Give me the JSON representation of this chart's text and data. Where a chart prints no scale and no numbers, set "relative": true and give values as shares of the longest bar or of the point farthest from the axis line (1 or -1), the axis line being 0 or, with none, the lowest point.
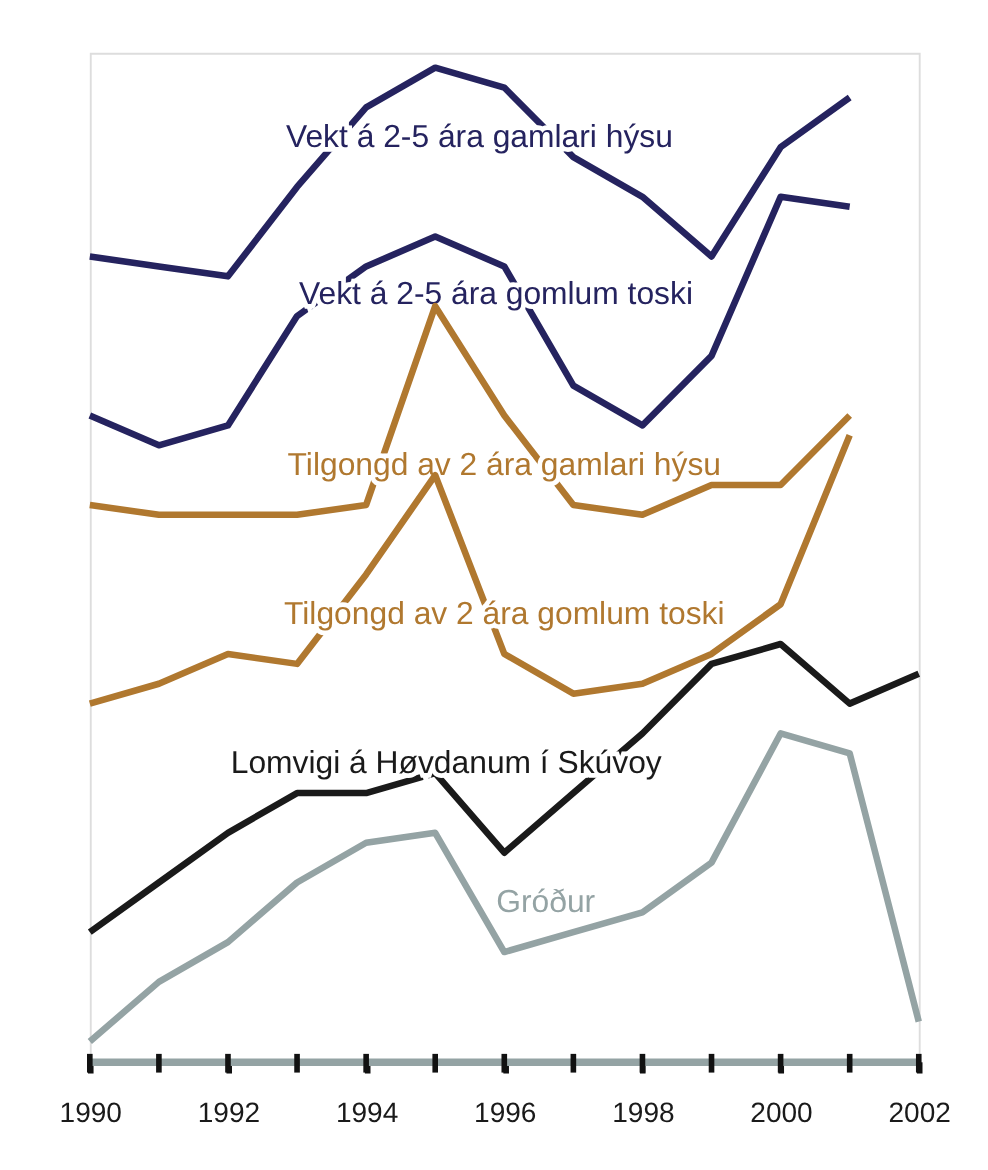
{
  "chart_data": {
    "type": "line",
    "relative": true,
    "x": [
      1990,
      1991,
      1992,
      1993,
      1994,
      1995,
      1996,
      1997,
      1998,
      1999,
      2000,
      2001,
      2002
    ],
    "xlim": [
      1990,
      2002
    ],
    "xticks": [
      1990,
      {
        "value": 1991,
        "label": null
      },
      1992,
      {
        "value": 1993,
        "label": null
      },
      1994,
      {
        "value": 1995,
        "label": null
      },
      1996,
      {
        "value": 1997,
        "label": null
      },
      1998,
      {
        "value": 1999,
        "label": null
      },
      2000,
      {
        "value": 2001,
        "label": null
      },
      2002
    ],
    "grid": false,
    "legend": false,
    "marker": "none",
    "line_style": "solid",
    "series": [
      {
        "name": "Vekt á 2-5 ára gamlari hýsu",
        "color": "#25235f",
        "values": [
          0.81,
          0.8,
          0.79,
          0.88,
          0.96,
          1,
          0.98,
          0.91,
          0.87,
          0.81,
          0.92,
          0.97,
          null
        ]
      },
      {
        "name": "Vekt á 2-5 ára gomlum toski",
        "color": "#25235f",
        "values": [
          0.65,
          0.62,
          0.64,
          0.75,
          0.8,
          0.83,
          0.8,
          0.68,
          0.64,
          0.71,
          0.87,
          0.86,
          null
        ]
      },
      {
        "name": "Tilgongd av 2 ára gamlari hýsu",
        "color": "#b0782f",
        "values": [
          0.56,
          0.55,
          0.55,
          0.55,
          0.56,
          0.76,
          0.65,
          0.56,
          0.55,
          0.58,
          0.58,
          0.65,
          null
        ]
      },
      {
        "name": "Tilgongd av 2 ára gomlum toski",
        "color": "#b0782f",
        "values": [
          0.36,
          0.38,
          0.41,
          0.4,
          0.49,
          0.59,
          0.41,
          0.37,
          0.38,
          0.41,
          0.46,
          0.63,
          null
        ]
      },
      {
        "name": "Lomvigi á Høvdanum í Skúvoy",
        "color": "#1a1a1a",
        "values": [
          0.13,
          0.18,
          0.23,
          0.27,
          0.27,
          0.29,
          0.21,
          0.27,
          0.33,
          0.4,
          0.42,
          0.36,
          0.39
        ]
      },
      {
        "name": "Gróður",
        "color": "#94a3a4",
        "values": [
          0.02,
          0.08,
          0.12,
          0.18,
          0.22,
          0.23,
          0.11,
          0.13,
          0.15,
          0.2,
          0.33,
          0.31,
          0.04
        ]
      }
    ]
  }
}
